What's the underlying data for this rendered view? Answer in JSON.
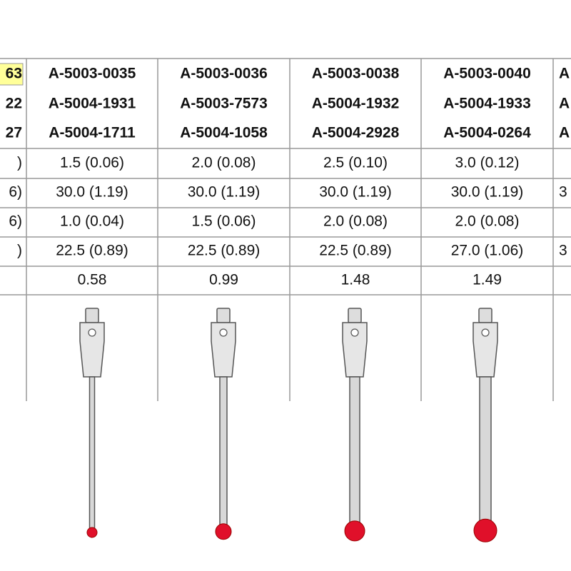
{
  "table": {
    "columns": [
      {
        "part_numbers": [
          "63",
          "22",
          "27"
        ],
        "values": [
          ")",
          "6)",
          "6)",
          ")",
          null
        ]
      },
      {
        "part_numbers": [
          "A-5003-0035",
          "A-5004-1931",
          "A-5004-1711"
        ],
        "values": [
          "1.5 (0.06)",
          "30.0 (1.19)",
          "1.0 (0.04)",
          "22.5 (0.89)",
          "0.58"
        ]
      },
      {
        "part_numbers": [
          "A-5003-0036",
          "A-5003-7573",
          "A-5004-1058"
        ],
        "values": [
          "2.0 (0.08)",
          "30.0 (1.19)",
          "1.5 (0.06)",
          "22.5 (0.89)",
          "0.99"
        ]
      },
      {
        "part_numbers": [
          "A-5003-0038",
          "A-5004-1932",
          "A-5004-2928"
        ],
        "values": [
          "2.5 (0.10)",
          "30.0 (1.19)",
          "2.0 (0.08)",
          "22.5 (0.89)",
          "1.48"
        ]
      },
      {
        "part_numbers": [
          "A-5003-0040",
          "A-5004-1933",
          "A-5004-0264"
        ],
        "values": [
          "3.0 (0.12)",
          "30.0 (1.19)",
          "2.0 (0.08)",
          "27.0 (1.06)",
          "1.49"
        ]
      },
      {
        "part_numbers": [
          "A",
          "A",
          "A"
        ],
        "values": [
          null,
          "3",
          null,
          "3",
          null
        ]
      }
    ]
  }
}
